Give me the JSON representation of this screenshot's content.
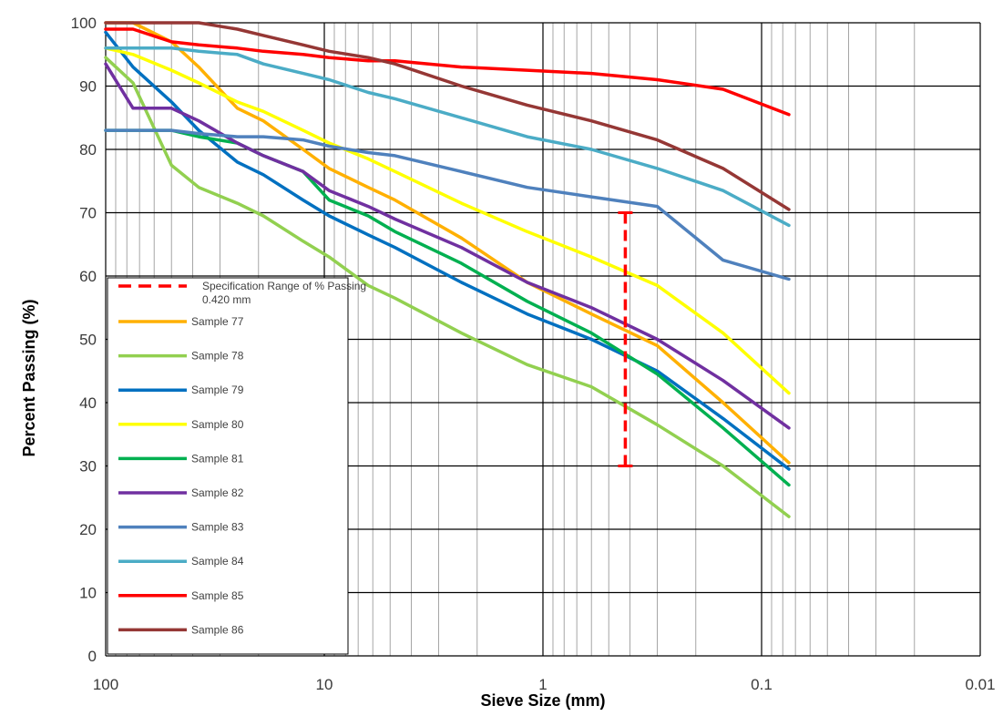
{
  "chart_data": {
    "type": "line",
    "xlabel": "Sieve Size (mm)",
    "ylabel": "Percent Passing (%)",
    "x_scale": "log",
    "x_reversed": true,
    "xlim": [
      100,
      0.01
    ],
    "ylim": [
      0,
      100
    ],
    "x_tick_labels": [
      "100",
      "10",
      "1",
      "0.1",
      "0.01"
    ],
    "x_tick_values": [
      100,
      10,
      1,
      0.1,
      0.01
    ],
    "y_tick_labels": [
      "0",
      "10",
      "20",
      "30",
      "40",
      "50",
      "60",
      "70",
      "80",
      "90",
      "100"
    ],
    "y_tick_values": [
      0,
      10,
      20,
      30,
      40,
      50,
      60,
      70,
      80,
      90,
      100
    ],
    "grid": true,
    "legend_position": "bottom-left",
    "spec_range": {
      "name": "Specification Range of % Passing 0.420 mm",
      "x": 0.42,
      "y_min": 30,
      "y_max": 70,
      "color": "#ff0000"
    },
    "x": [
      100,
      75,
      50,
      37.5,
      25,
      19,
      12.5,
      9.5,
      6.3,
      4.75,
      2.36,
      1.18,
      0.6,
      0.3,
      0.15,
      0.075
    ],
    "series": [
      {
        "name": "Sample 77",
        "color": "#ffb000",
        "values": [
          100,
          100,
          97,
          93,
          86.5,
          84.5,
          80,
          77,
          74,
          72,
          66,
          59,
          54,
          49,
          40,
          30.5
        ]
      },
      {
        "name": "Sample 78",
        "color": "#92d050",
        "values": [
          94.5,
          90.5,
          77.5,
          74,
          71.5,
          69.5,
          65.5,
          63,
          58.5,
          56.5,
          51,
          46,
          42.5,
          36.5,
          30,
          22
        ]
      },
      {
        "name": "Sample 79",
        "color": "#0070c0",
        "values": [
          98.5,
          93,
          87.5,
          83,
          78,
          76,
          72,
          69.5,
          66.5,
          64.5,
          59,
          54,
          50,
          45,
          37.5,
          29.5
        ]
      },
      {
        "name": "Sample 80",
        "color": "#ffff00",
        "values": [
          96,
          95,
          92.5,
          90.5,
          87.5,
          86,
          83,
          81,
          78.5,
          76.5,
          71.5,
          67,
          63,
          58.5,
          51,
          41.5
        ]
      },
      {
        "name": "Sample 81",
        "color": "#00b050",
        "values": [
          83,
          83,
          83,
          82,
          81,
          79,
          76.5,
          72,
          69.5,
          67,
          62,
          56,
          51,
          44.5,
          36,
          27
        ]
      },
      {
        "name": "Sample 82",
        "color": "#7030a0",
        "values": [
          93.5,
          86.5,
          86.5,
          84.5,
          81,
          79,
          76.5,
          73.5,
          71,
          69,
          64.5,
          59,
          55,
          50,
          43.5,
          36
        ]
      },
      {
        "name": "Sample 83",
        "color": "#4f81bd",
        "values": [
          83,
          83,
          83,
          82.5,
          82,
          82,
          81.5,
          80.5,
          79.5,
          79,
          76.5,
          74,
          72.5,
          71,
          62.5,
          59.5
        ]
      },
      {
        "name": "Sample 84",
        "color": "#4bacc6",
        "values": [
          96,
          96,
          96,
          95.5,
          95,
          93.5,
          92,
          91,
          89,
          88,
          85,
          82,
          80,
          77,
          73.5,
          68
        ]
      },
      {
        "name": "Sample 85",
        "color": "#ff0000",
        "values": [
          99,
          99,
          97,
          96.5,
          96,
          95.5,
          95,
          94.5,
          94,
          94,
          93,
          92.5,
          92,
          91,
          89.5,
          85.5
        ]
      },
      {
        "name": "Sample 86",
        "color": "#953735",
        "values": [
          100,
          100,
          100,
          100,
          99,
          98,
          96.5,
          95.5,
          94.5,
          93.5,
          90,
          87,
          84.5,
          81.5,
          77,
          70.5
        ]
      }
    ]
  }
}
